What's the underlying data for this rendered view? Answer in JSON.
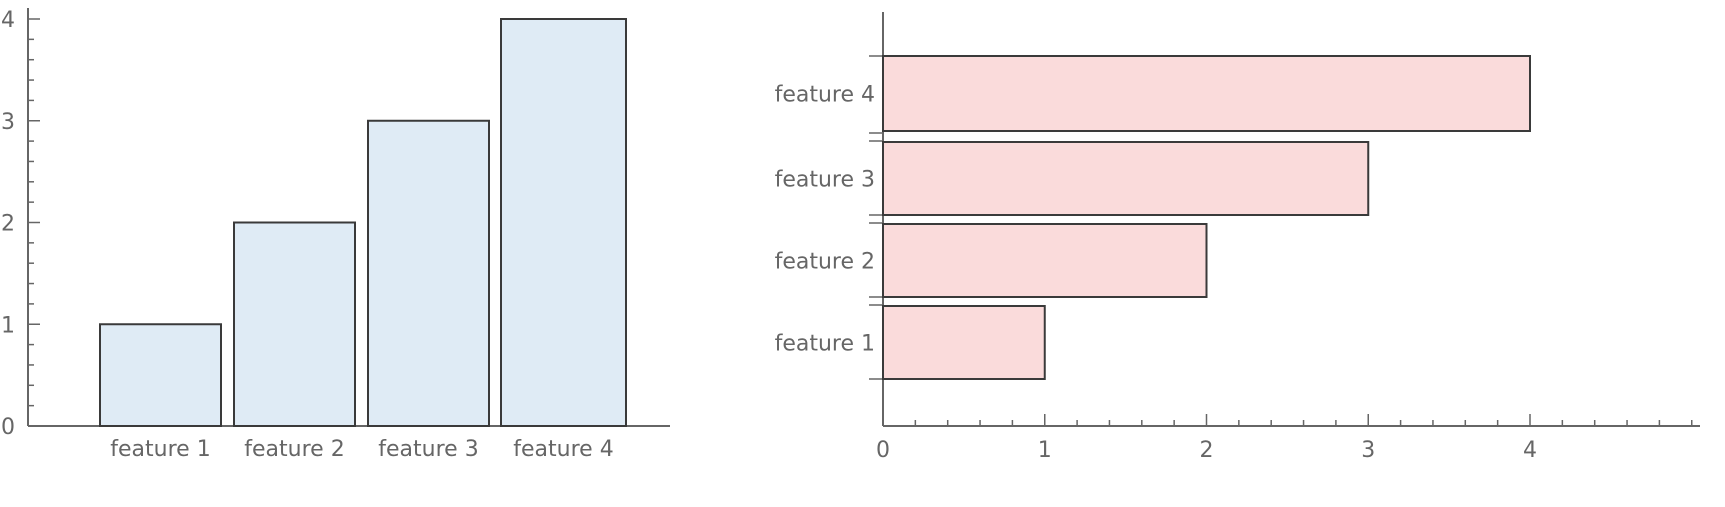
{
  "chart_data": [
    {
      "type": "bar",
      "orientation": "vertical",
      "categories": [
        "feature 1",
        "feature 2",
        "feature 3",
        "feature 4"
      ],
      "values": [
        1,
        2,
        3,
        4
      ],
      "title": "",
      "xlabel": "",
      "ylabel": "",
      "ylim": [
        0,
        4
      ],
      "y_ticks": [
        "0",
        "1",
        "2",
        "3",
        "4"
      ],
      "grid": false,
      "bar_fill": "#dfebf5",
      "bar_stroke": "#3a3a3a",
      "axis_color": "#666666"
    },
    {
      "type": "bar",
      "orientation": "horizontal",
      "categories": [
        "feature 1",
        "feature 2",
        "feature 3",
        "feature 4"
      ],
      "values": [
        1,
        2,
        3,
        4
      ],
      "title": "",
      "xlabel": "",
      "ylabel": "",
      "xlim": [
        0,
        4
      ],
      "x_ticks": [
        "0",
        "1",
        "2",
        "3",
        "4"
      ],
      "grid": false,
      "bar_fill": "#fadbdb",
      "bar_stroke": "#3a3a3a",
      "axis_color": "#666666"
    }
  ]
}
